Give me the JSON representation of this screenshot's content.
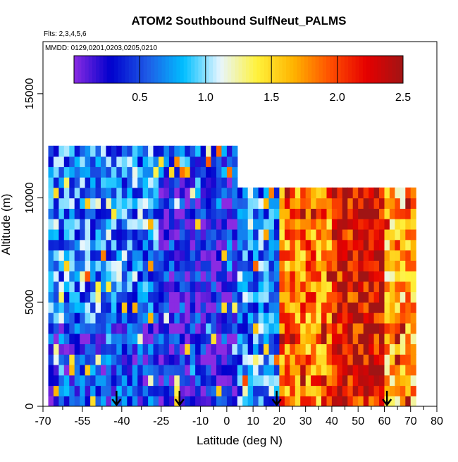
{
  "chart_data": {
    "type": "heatmap",
    "title": "ATOM2 Southbound SulfNeut_PALMS",
    "flights_note": "Flts: 2,3,4,5,6",
    "dates_note": "MMDD: 0129,0201,0203,0205,0210",
    "xlabel": "Latitude (deg N)",
    "ylabel": "Altitude (m)",
    "xlim": [
      -70,
      80
    ],
    "ylim": [
      0,
      17500
    ],
    "x_ticks": [
      -70,
      -55,
      -40,
      -25,
      -10,
      0,
      10,
      20,
      30,
      40,
      50,
      60,
      70,
      80
    ],
    "x_tick_labels": [
      "-70",
      "-55",
      "-40",
      "-25",
      "-10",
      "0",
      "10",
      "20",
      "30",
      "40",
      "50",
      "60",
      "70",
      "80"
    ],
    "x_minor_ticks": [
      -62.5,
      -47.5,
      -32.5,
      -17.5,
      -5,
      5,
      15,
      25,
      35,
      45,
      55,
      65,
      75
    ],
    "y_ticks": [
      0,
      5000,
      10000,
      15000
    ],
    "y_tick_labels": [
      "0",
      "5000",
      "10000",
      "15000"
    ],
    "grid": false,
    "colorbar": {
      "placement": "top",
      "range": [
        0,
        2.5
      ],
      "ticks": [
        0.5,
        1.0,
        1.5,
        2.0,
        2.5
      ],
      "tick_labels": [
        "0.5",
        "1.0",
        "1.5",
        "2.0",
        "2.5"
      ],
      "colors": [
        "#8a2be2",
        "#0000cd",
        "#1e5ae6",
        "#00bfff",
        "#e8f6ff",
        "#fff23c",
        "#ffb400",
        "#ff5000",
        "#e60000",
        "#a01414"
      ]
    },
    "profile_markers_latitude": [
      -42,
      -18,
      19,
      61
    ],
    "approximate_field": {
      "regions": [
        {
          "lat": [
            -70,
            -25
          ],
          "alt": [
            0,
            4000
          ],
          "value": 0.4
        },
        {
          "lat": [
            -70,
            -25
          ],
          "alt": [
            4000,
            12500
          ],
          "value": 0.7
        },
        {
          "lat": [
            -25,
            5
          ],
          "alt": [
            0,
            10800
          ],
          "value": 0.25
        },
        {
          "lat": [
            -25,
            5
          ],
          "alt": [
            10800,
            12500
          ],
          "value": 0.6
        },
        {
          "lat": [
            5,
            20
          ],
          "alt": [
            0,
            10500
          ],
          "value": 0.7
        },
        {
          "lat": [
            20,
            40
          ],
          "alt": [
            0,
            10500
          ],
          "value": 1.8
        },
        {
          "lat": [
            40,
            60
          ],
          "alt": [
            0,
            10500
          ],
          "value": 2.2
        },
        {
          "lat": [
            60,
            72
          ],
          "alt": [
            0,
            10500
          ],
          "value": 1.6
        }
      ]
    }
  }
}
